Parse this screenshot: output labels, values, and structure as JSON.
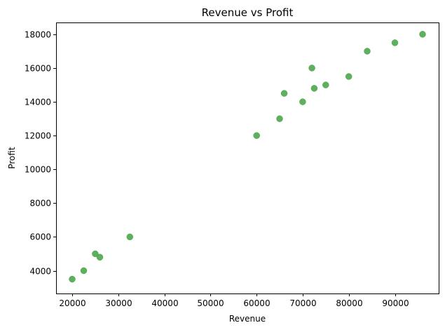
{
  "chart_data": {
    "type": "scatter",
    "title": "Revenue vs Profit",
    "xlabel": "Revenue",
    "ylabel": "Profit",
    "xlim": [
      16500,
      99500
    ],
    "ylim": [
      2650,
      18700
    ],
    "xticks": [
      20000,
      30000,
      40000,
      50000,
      60000,
      70000,
      80000,
      90000
    ],
    "yticks": [
      4000,
      6000,
      8000,
      10000,
      12000,
      14000,
      16000,
      18000
    ],
    "grid": false,
    "marker_color": "#4CA64C",
    "points": [
      {
        "x": 20000,
        "y": 3500
      },
      {
        "x": 22500,
        "y": 4000
      },
      {
        "x": 25000,
        "y": 5000
      },
      {
        "x": 26000,
        "y": 4800
      },
      {
        "x": 32500,
        "y": 6000
      },
      {
        "x": 60000,
        "y": 12000
      },
      {
        "x": 65000,
        "y": 13000
      },
      {
        "x": 66000,
        "y": 14500
      },
      {
        "x": 70000,
        "y": 14000
      },
      {
        "x": 72000,
        "y": 16000
      },
      {
        "x": 72500,
        "y": 14800
      },
      {
        "x": 75000,
        "y": 15000
      },
      {
        "x": 80000,
        "y": 15500
      },
      {
        "x": 84000,
        "y": 17000
      },
      {
        "x": 90000,
        "y": 17500
      },
      {
        "x": 96000,
        "y": 18000
      }
    ]
  }
}
